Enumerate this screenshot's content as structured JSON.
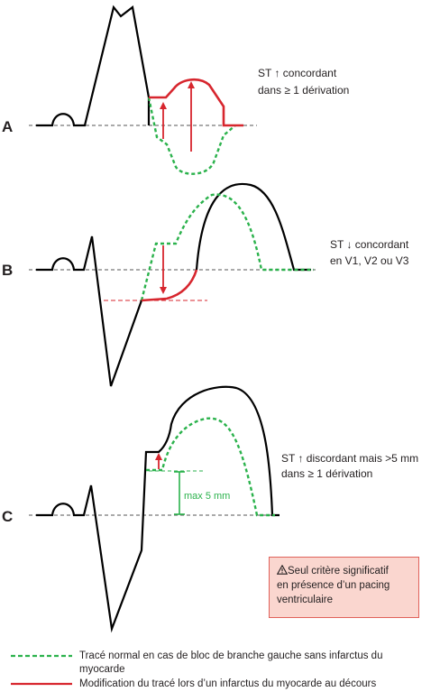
{
  "panels": [
    {
      "label": "A",
      "annotation_lines": [
        "ST ↑ concordant",
        "dans ≥ 1 dérivation"
      ]
    },
    {
      "label": "B",
      "annotation_lines": [
        "ST ↓ concordant",
        "en V1, V2 ou V3"
      ]
    },
    {
      "label": "C",
      "annotation_lines": [
        "ST ↑ discordant mais >5 mm",
        "dans ≥ 1 dérivation"
      ],
      "measure_label": "max 5 mm"
    }
  ],
  "warning_box": {
    "icon": "warning-triangle-icon",
    "lines": [
      "Seul critère significatif",
      "en présence d’un pacing",
      "ventriculaire"
    ]
  },
  "legend": [
    {
      "style": "dashed",
      "color": "#2bb24c",
      "lines": [
        "Tracé normal en cas de bloc de branche gauche sans infarctus du",
        "myocarde"
      ]
    },
    {
      "style": "solid",
      "color": "#d7262e",
      "lines": [
        "Modification du tracé lors d’un infarctus du myocarde au décours"
      ]
    }
  ],
  "colors": {
    "trace": "#000000",
    "normal_dashed": "#2bb24c",
    "infarct": "#d7262e",
    "baseline": "#555555"
  }
}
